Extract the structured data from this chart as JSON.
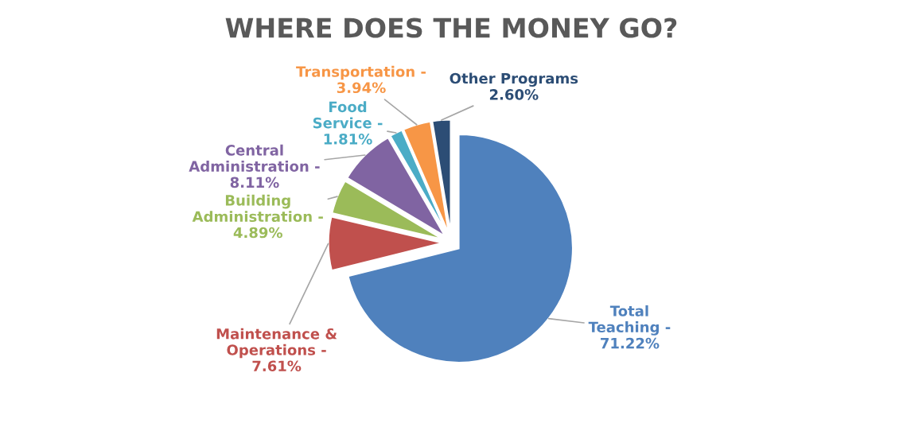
{
  "chart_data": {
    "type": "pie",
    "title": "WHERE DOES THE MONEY GO?",
    "categories": [
      "Total Teaching -",
      "Maintenance & Operations -",
      "Building Administration -",
      "Central Administration -",
      "Food Service -",
      "Transportation -",
      "Other Programs"
    ],
    "values": [
      71.22,
      7.61,
      4.89,
      8.11,
      1.81,
      3.94,
      2.6
    ],
    "value_labels": [
      "71.22%",
      "7.61%",
      "4.89%",
      "8.11%",
      "1.81%",
      "3.94%",
      "2.60%"
    ],
    "colors": [
      "#4f81bd",
      "#c0504d",
      "#9bbb59",
      "#8064a2",
      "#4bacc6",
      "#f79646",
      "#2c4d75"
    ],
    "legend": false
  }
}
